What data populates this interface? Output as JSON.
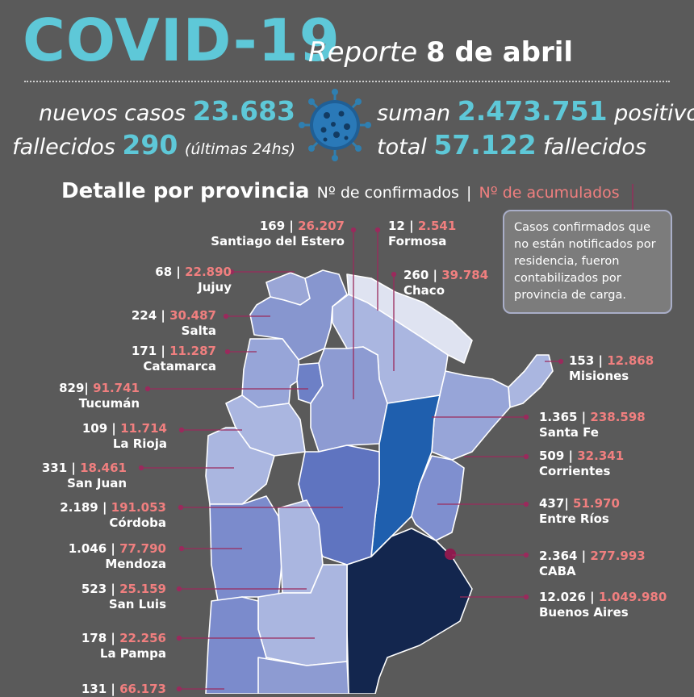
{
  "header": {
    "title": "COVID-19",
    "report_prefix": "Reporte",
    "report_date": "8 de abril"
  },
  "stats": {
    "new_cases_label": "nuevos casos",
    "new_cases": "23.683",
    "deaths_label": "fallecidos",
    "deaths": "290",
    "deaths_note": "(últimas 24hs)",
    "total_prefix": "suman",
    "total_positive": "2.473.751",
    "total_suffix": "positivos",
    "total_deaths_prefix": "total",
    "total_deaths": "57.122",
    "total_deaths_suffix": "fallecidos"
  },
  "detail": {
    "title": "Detalle por provincia",
    "confirmed_label": "Nº de confirmados",
    "separator": "|",
    "accumulated_label": "Nº de acumulados"
  },
  "note": "Casos confirmados que no están notificados por residencia, fueron contabilizados por provincia de carga.",
  "provinces": {
    "santiago": {
      "confirmed": "169",
      "accumulated": "26.207",
      "name": "Santiago del Estero"
    },
    "formosa": {
      "confirmed": "12",
      "accumulated": "2.541",
      "name": "Formosa"
    },
    "jujuy": {
      "confirmed": "68",
      "accumulated": "22.890",
      "name": "Jujuy"
    },
    "chaco": {
      "confirmed": "260",
      "accumulated": "39.784",
      "name": "Chaco"
    },
    "salta": {
      "confirmed": "224",
      "accumulated": "30.487",
      "name": "Salta"
    },
    "catamarca": {
      "confirmed": "171",
      "accumulated": "11.287",
      "name": "Catamarca"
    },
    "misiones": {
      "confirmed": "153",
      "accumulated": "12.868",
      "name": "Misiones"
    },
    "tucuman": {
      "confirmed": "829",
      "accumulated": "91.741",
      "name": "Tucumán"
    },
    "santafe": {
      "confirmed": "1.365",
      "accumulated": "238.598",
      "name": "Santa Fe"
    },
    "larioja": {
      "confirmed": "109",
      "accumulated": "11.714",
      "name": "La Rioja"
    },
    "corrientes": {
      "confirmed": "509",
      "accumulated": "32.341",
      "name": "Corrientes"
    },
    "sanjuan": {
      "confirmed": "331",
      "accumulated": "18.461",
      "name": "San Juan"
    },
    "cordoba": {
      "confirmed": "2.189",
      "accumulated": "191.053",
      "name": "Córdoba"
    },
    "entrerios": {
      "confirmed": "437",
      "accumulated": "51.970",
      "name": "Entre Ríos"
    },
    "mendoza": {
      "confirmed": "1.046",
      "accumulated": "77.790",
      "name": "Mendoza"
    },
    "caba": {
      "confirmed": "2.364",
      "accumulated": "277.993",
      "name": "CABA"
    },
    "sanluis": {
      "confirmed": "523",
      "accumulated": "25.159",
      "name": "San Luis"
    },
    "buenosaires": {
      "confirmed": "12.026",
      "accumulated": "1.049.980",
      "name": "Buenos Aires"
    },
    "lapampa": {
      "confirmed": "178",
      "accumulated": "22.256",
      "name": "La Pampa"
    },
    "neuquen": {
      "confirmed": "131",
      "accumulated": "66.173"
    }
  },
  "colors": {
    "accent": "#5ec8d8",
    "accumulated": "#f07f7f",
    "background": "#5a5a5a"
  }
}
